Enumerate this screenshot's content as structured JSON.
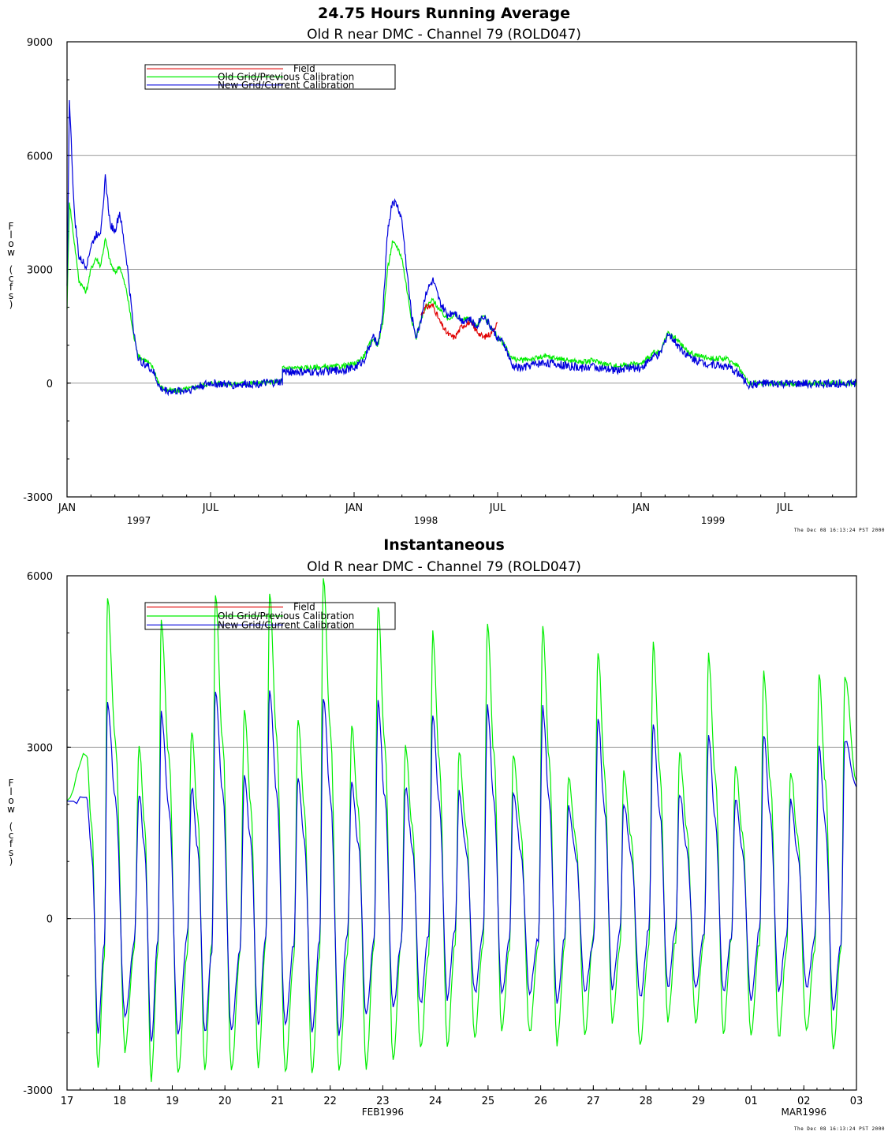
{
  "colors": {
    "field": "#e00000",
    "old_grid": "#00ee00",
    "new_grid": "#0000dd",
    "gridline": "#999999",
    "axis": "#000000"
  },
  "stamp_text": "The Dec 08 16:13:24 PST 2000",
  "chart_data": [
    {
      "type": "line",
      "title": "24.75 Hours Running Average",
      "subtitle": "Old R near DMC - Channel 79 (ROLD047)",
      "ylabel": "Flow (cfs)",
      "xlabel": "",
      "x_unit": "months since JAN 1997",
      "xlim": [
        0,
        33
      ],
      "ylim": [
        -3000,
        9000
      ],
      "yticks": [
        -3000,
        0,
        3000,
        6000,
        9000
      ],
      "grid": {
        "horizontal": [
          0,
          3000,
          6000
        ]
      },
      "xticks": [
        {
          "x": 0,
          "label": "JAN"
        },
        {
          "x": 6,
          "label": "JUL"
        },
        {
          "x": 12,
          "label": "JAN"
        },
        {
          "x": 18,
          "label": "JUL"
        },
        {
          "x": 24,
          "label": "JAN"
        },
        {
          "x": 30,
          "label": "JUL"
        }
      ],
      "year_labels": [
        {
          "x": 3,
          "label": "1997"
        },
        {
          "x": 15,
          "label": "1998"
        },
        {
          "x": 27,
          "label": "1999"
        }
      ],
      "legend": {
        "placement": "top-left",
        "entries": [
          "Field",
          "Old Grid/Previous Calibration",
          "New Grid/Current Calibration"
        ]
      },
      "series": [
        {
          "name": "Field",
          "color_key": "field",
          "x": [
            14.8,
            15.0,
            15.3,
            15.6,
            15.9,
            16.2,
            16.5,
            16.8,
            17.1,
            17.4,
            17.7,
            18.0
          ],
          "y": [
            1800,
            2000,
            2050,
            1600,
            1300,
            1200,
            1500,
            1600,
            1400,
            1200,
            1300,
            1600
          ]
        },
        {
          "name": "Old Grid/Previous Calibration",
          "color_key": "old_grid",
          "x": [
            0,
            0.1,
            0.25,
            0.5,
            0.8,
            1.0,
            1.2,
            1.4,
            1.6,
            1.8,
            2.0,
            2.2,
            2.5,
            2.8,
            3.0,
            3.3,
            3.6,
            3.9,
            4.2,
            4.5,
            4.8,
            5.1,
            5.4,
            5.7,
            6.0,
            6.5,
            7.0,
            7.5,
            8.0,
            8.5,
            9.0,
            9.01,
            9.5,
            10.0,
            10.5,
            11.0,
            11.5,
            12.0,
            12.4,
            12.8,
            13.0,
            13.2,
            13.4,
            13.6,
            13.8,
            14.0,
            14.2,
            14.4,
            14.6,
            14.8,
            15.0,
            15.3,
            15.6,
            15.9,
            16.2,
            16.5,
            16.8,
            17.1,
            17.4,
            17.7,
            18.0,
            18.3,
            18.6,
            19.0,
            19.5,
            20.0,
            20.5,
            21.0,
            21.5,
            22.0,
            22.5,
            23.0,
            23.5,
            24.0,
            24.5,
            24.8,
            25.1,
            25.4,
            25.7,
            26.0,
            26.5,
            27.0,
            27.5,
            28.0,
            28.5,
            29.0,
            29.5,
            30.0,
            30.5,
            31.0,
            31.5,
            32.0,
            33.0
          ],
          "y": [
            2000,
            4800,
            4000,
            2700,
            2400,
            3000,
            3300,
            3100,
            3800,
            3200,
            2900,
            3100,
            2400,
            1200,
            700,
            600,
            400,
            -100,
            -200,
            -200,
            -180,
            -150,
            -100,
            -50,
            0,
            0,
            -20,
            -10,
            0,
            20,
            50,
            400,
            400,
            400,
            420,
            420,
            450,
            500,
            700,
            1200,
            1000,
            1600,
            3000,
            3700,
            3600,
            3300,
            2500,
            1700,
            1200,
            1700,
            2000,
            2200,
            1900,
            1700,
            1800,
            1650,
            1700,
            1500,
            1800,
            1500,
            1200,
            1000,
            650,
            600,
            650,
            700,
            650,
            600,
            550,
            600,
            500,
            450,
            500,
            500,
            800,
            800,
            1300,
            1200,
            1000,
            800,
            700,
            650,
            650,
            500,
            0,
            0,
            0,
            0,
            -20,
            0,
            -10,
            0,
            0
          ],
          "noise": 70
        },
        {
          "name": "New Grid/Current Calibration",
          "color_key": "new_grid",
          "x": [
            0,
            0.1,
            0.3,
            0.5,
            0.8,
            1.0,
            1.2,
            1.4,
            1.6,
            1.8,
            2.0,
            2.2,
            2.5,
            2.8,
            3.0,
            3.3,
            3.6,
            3.9,
            4.2,
            4.5,
            4.8,
            5.1,
            5.4,
            5.7,
            6.0,
            6.5,
            7.0,
            7.5,
            8.0,
            8.5,
            9.0,
            9.01,
            9.5,
            10.0,
            10.5,
            11.0,
            11.5,
            12.0,
            12.4,
            12.8,
            13.0,
            13.2,
            13.4,
            13.6,
            13.8,
            14.0,
            14.2,
            14.4,
            14.6,
            14.8,
            15.0,
            15.3,
            15.6,
            15.9,
            16.2,
            16.5,
            16.8,
            17.1,
            17.4,
            17.7,
            18.0,
            18.3,
            18.6,
            19.0,
            19.5,
            20.0,
            20.5,
            21.0,
            21.5,
            22.0,
            22.5,
            23.0,
            23.5,
            24.0,
            24.5,
            24.8,
            25.1,
            25.4,
            25.7,
            26.0,
            26.5,
            27.0,
            27.5,
            28.0,
            28.5,
            29.0,
            29.5,
            30.0,
            30.5,
            31.0,
            31.5,
            32.0,
            33.0
          ],
          "y": [
            2500,
            7500,
            4500,
            3300,
            3100,
            3600,
            3900,
            4000,
            5400,
            4200,
            4000,
            4500,
            3200,
            1300,
            600,
            500,
            300,
            -150,
            -200,
            -220,
            -200,
            -180,
            -100,
            -50,
            0,
            -30,
            -50,
            -20,
            -10,
            0,
            30,
            300,
            300,
            280,
            300,
            320,
            350,
            400,
            600,
            1200,
            1000,
            1800,
            4000,
            4800,
            4700,
            4300,
            3000,
            1800,
            1200,
            1700,
            2400,
            2700,
            2100,
            1800,
            1900,
            1650,
            1700,
            1500,
            1800,
            1500,
            1200,
            1000,
            450,
            400,
            500,
            550,
            500,
            450,
            400,
            450,
            350,
            350,
            400,
            400,
            700,
            750,
            1300,
            1100,
            900,
            700,
            550,
            500,
            450,
            300,
            -50,
            0,
            -20,
            -20,
            -30,
            -10,
            -20,
            -10,
            0
          ],
          "noise": 110
        }
      ]
    },
    {
      "type": "line",
      "title": "Instantaneous",
      "subtitle": "Old R near DMC - Channel 79 (ROLD047)",
      "ylabel": "Flow (cfs)",
      "xlabel": "",
      "x_unit": "days since 17 FEB 1996",
      "xlim": [
        0,
        15
      ],
      "ylim": [
        -3000,
        6000
      ],
      "yticks": [
        -3000,
        0,
        3000,
        6000
      ],
      "grid": {
        "horizontal": [
          0,
          3000
        ]
      },
      "xticks": [
        {
          "x": 0,
          "label": "17"
        },
        {
          "x": 1,
          "label": "18"
        },
        {
          "x": 2,
          "label": "19"
        },
        {
          "x": 3,
          "label": "20"
        },
        {
          "x": 4,
          "label": "21"
        },
        {
          "x": 5,
          "label": "22"
        },
        {
          "x": 6,
          "label": "23"
        },
        {
          "x": 7,
          "label": "24"
        },
        {
          "x": 8,
          "label": "25"
        },
        {
          "x": 9,
          "label": "26"
        },
        {
          "x": 10,
          "label": "27"
        },
        {
          "x": 11,
          "label": "28"
        },
        {
          "x": 12,
          "label": "29"
        },
        {
          "x": 13,
          "label": "01"
        },
        {
          "x": 14,
          "label": "02"
        },
        {
          "x": 15,
          "label": "03"
        }
      ],
      "month_labels": [
        {
          "x": 6,
          "label": "FEB1996"
        },
        {
          "x": 14,
          "label": "MAR1996"
        }
      ],
      "legend": {
        "placement": "top-left",
        "entries": [
          "Field",
          "Old Grid/Previous Calibration",
          "New Grid/Current Calibration"
        ]
      },
      "series": [
        {
          "name": "Field",
          "color_key": "field",
          "x": [],
          "y": []
        },
        {
          "name": "Old Grid/Previous Calibration",
          "color_key": "old_grid",
          "tidal_peaks_x": [
            0.37,
            0.77,
            1.37,
            1.79,
            2.37,
            2.82,
            3.37,
            3.85,
            4.39,
            4.87,
            5.41,
            5.91,
            6.43,
            6.95,
            7.45,
            7.99,
            8.48,
            9.04,
            9.53,
            10.09,
            10.58,
            11.14,
            11.64,
            12.19,
            12.7,
            13.24,
            13.75,
            14.29,
            14.78
          ],
          "tidal_peaks_y": [
            2900,
            5600,
            3000,
            5200,
            3300,
            5700,
            3700,
            5700,
            3500,
            6000,
            3400,
            5500,
            3000,
            5000,
            2900,
            5200,
            2900,
            5100,
            2500,
            4700,
            2600,
            4800,
            2900,
            4600,
            2700,
            4300,
            2600,
            4300,
            4200
          ],
          "tidal_troughs_y": [
            -2600,
            -2300,
            -2800,
            -2700,
            -2600,
            -2700,
            -2600,
            -2700,
            -2700,
            -2700,
            -2600,
            -2500,
            -2300,
            -2200,
            -2100,
            -2000,
            -2000,
            -2200,
            -2000,
            -1800,
            -2200,
            -1800,
            -1800,
            -2000,
            -2000,
            -2100,
            -2000,
            -2300
          ]
        },
        {
          "name": "New Grid/Current Calibration",
          "color_key": "new_grid",
          "tidal_peaks_x": [
            0.37,
            0.77,
            1.37,
            1.79,
            2.37,
            2.82,
            3.37,
            3.85,
            4.39,
            4.87,
            5.41,
            5.91,
            6.43,
            6.95,
            7.45,
            7.99,
            8.48,
            9.04,
            9.53,
            10.09,
            10.58,
            11.14,
            11.64,
            12.19,
            12.7,
            13.24,
            13.75,
            14.29,
            14.78
          ],
          "tidal_peaks_y": [
            2100,
            3800,
            2200,
            3600,
            2300,
            4000,
            2500,
            4000,
            2500,
            3900,
            2400,
            3800,
            2300,
            3600,
            2200,
            3700,
            2200,
            3700,
            2000,
            3500,
            2000,
            3400,
            2200,
            3200,
            2100,
            3200,
            2100,
            3000,
            3100
          ],
          "tidal_troughs_y": [
            -2000,
            -1700,
            -2200,
            -2000,
            -2000,
            -2000,
            -1900,
            -1900,
            -2000,
            -2000,
            -1700,
            -1600,
            -1500,
            -1400,
            -1300,
            -1300,
            -1300,
            -1500,
            -1300,
            -1200,
            -1400,
            -1200,
            -1200,
            -1300,
            -1400,
            -1300,
            -1200,
            -1600
          ]
        }
      ]
    }
  ]
}
